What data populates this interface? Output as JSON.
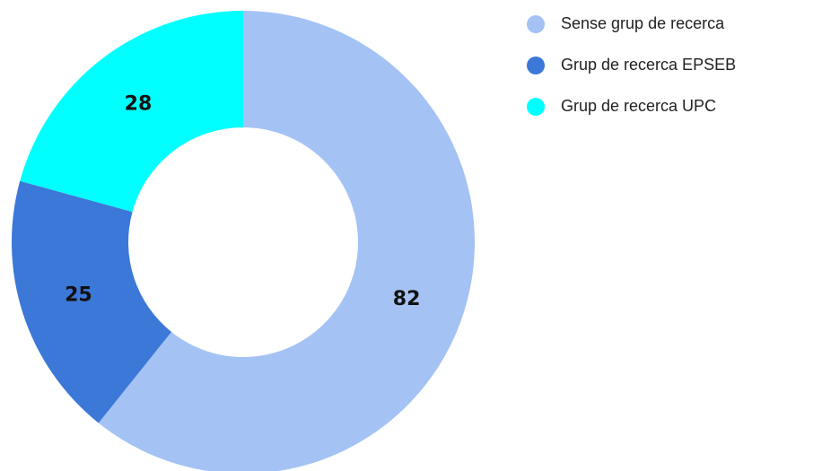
{
  "chart_data": {
    "type": "donut",
    "categories": [
      "Sense grup de recerca",
      "Grup de recerca EPSEB",
      "Grup de recerca UPC"
    ],
    "values": [
      82,
      25,
      28
    ],
    "colors": [
      "#a4c2f4",
      "#3c78d8",
      "#00ffff"
    ],
    "legend": "top-right"
  }
}
